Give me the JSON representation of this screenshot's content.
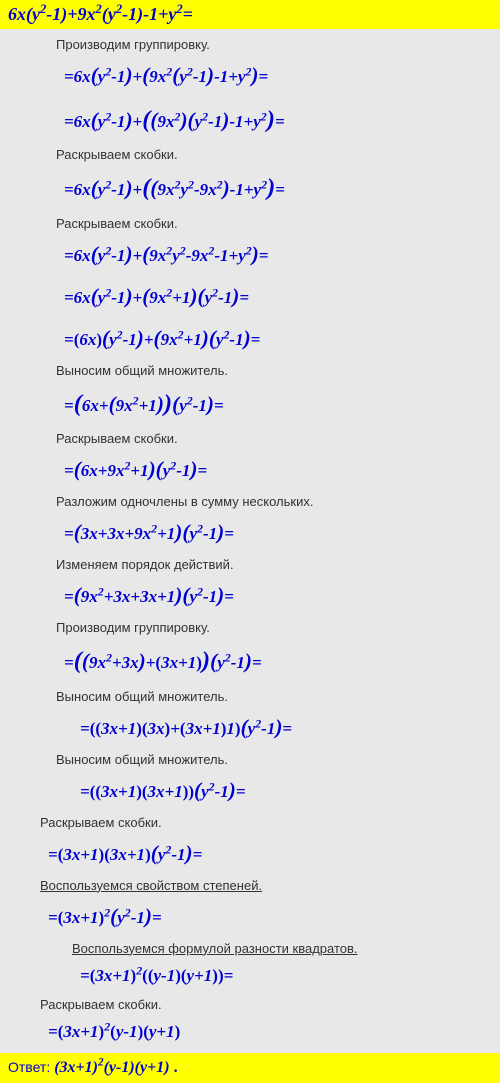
{
  "header_math": "6x(y<sup>2</sup>-1)+9x<sup>2</sup>(y<sup>2</sup>-1)-1+y<sup>2</sup>=",
  "answer_label": "Ответ:",
  "answer_math": "(3x+1)<sup>2</sup>(y-1)(y+1)",
  "answer_suffix": ".",
  "steps": [
    {
      "t": "explain",
      "lvl": "",
      "text": "Производим группировку."
    },
    {
      "t": "math",
      "lvl": "",
      "html": "=6x<span class='big'>(</span>y<sup>2</sup>-1<span class='big'>)</span>+<span class='big'>(</span>9x<sup>2</sup><span class='big'>(</span>y<sup>2</sup>-1<span class='big'>)</span>-1+y<sup>2</sup><span class='big'>)</span>="
    },
    {
      "t": "math",
      "lvl": "",
      "html": "=6x<span class='big'>(</span>y<sup>2</sup>-1<span class='big'>)</span>+<span class='bigger'>(</span><span class='big'>(</span>9x<sup>2</sup><span class='big'>)</span><span class='big'>(</span>y<sup>2</sup>-1<span class='big'>)</span>-1+y<sup>2</sup><span class='bigger'>)</span>="
    },
    {
      "t": "explain",
      "lvl": "",
      "text": "Раскрываем скобки."
    },
    {
      "t": "math",
      "lvl": "",
      "html": "=6x<span class='big'>(</span>y<sup>2</sup>-1<span class='big'>)</span>+<span class='bigger'>(</span><span class='big'>(</span>9x<sup>2</sup>y<sup>2</sup>-9x<sup>2</sup><span class='big'>)</span>-1+y<sup>2</sup><span class='bigger'>)</span>="
    },
    {
      "t": "explain",
      "lvl": "",
      "text": "Раскрываем скобки."
    },
    {
      "t": "math",
      "lvl": "",
      "html": "=6x<span class='big'>(</span>y<sup>2</sup>-1<span class='big'>)</span>+<span class='big'>(</span>9x<sup>2</sup>y<sup>2</sup>-9x<sup>2</sup>-1+y<sup>2</sup><span class='big'>)</span>="
    },
    {
      "t": "math",
      "lvl": "",
      "html": "=6x<span class='big'>(</span>y<sup>2</sup>-1<span class='big'>)</span>+<span class='big'>(</span>9x<sup>2</sup>+1<span class='big'>)</span><span class='big'>(</span>y<sup>2</sup>-1<span class='big'>)</span>="
    },
    {
      "t": "math",
      "lvl": "",
      "html": "=<span class='n'>(</span>6x<span class='n'>)</span><span class='big'>(</span>y<sup>2</sup>-1<span class='big'>)</span>+<span class='big'>(</span>9x<sup>2</sup>+1<span class='big'>)</span><span class='big'>(</span>y<sup>2</sup>-1<span class='big'>)</span>="
    },
    {
      "t": "explain",
      "lvl": "",
      "text": "Выносим общий множитель."
    },
    {
      "t": "math",
      "lvl": "",
      "html": "=<span class='bigger'>(</span>6x+<span class='big'>(</span>9x<sup>2</sup>+1<span class='big'>)</span><span class='bigger'>)</span><span class='big'>(</span>y<sup>2</sup>-1<span class='big'>)</span>="
    },
    {
      "t": "explain",
      "lvl": "",
      "text": "Раскрываем скобки."
    },
    {
      "t": "math",
      "lvl": "",
      "html": "=<span class='big'>(</span>6x+9x<sup>2</sup>+1<span class='big'>)</span><span class='big'>(</span>y<sup>2</sup>-1<span class='big'>)</span>="
    },
    {
      "t": "explain",
      "lvl": "",
      "text": "Разложим одночлены в сумму нескольких."
    },
    {
      "t": "math",
      "lvl": "",
      "html": "=<span class='big'>(</span>3x+3x+9x<sup>2</sup>+1<span class='big'>)</span><span class='big'>(</span>y<sup>2</sup>-1<span class='big'>)</span>="
    },
    {
      "t": "explain",
      "lvl": "",
      "text": "Изменяем порядок действий."
    },
    {
      "t": "math",
      "lvl": "",
      "html": "=<span class='big'>(</span>9x<sup>2</sup>+3x+3x+1<span class='big'>)</span><span class='big'>(</span>y<sup>2</sup>-1<span class='big'>)</span>="
    },
    {
      "t": "explain",
      "lvl": "",
      "text": "Производим группировку."
    },
    {
      "t": "math",
      "lvl": "",
      "html": "=<span class='bigger'>(</span><span class='big'>(</span>9x<sup>2</sup>+3x<span class='big'>)</span>+<span class='n'>(</span>3x+1<span class='n'>)</span><span class='bigger'>)</span><span class='big'>(</span>y<sup>2</sup>-1<span class='big'>)</span>="
    },
    {
      "t": "explain",
      "lvl": "",
      "text": "Выносим общий множитель."
    },
    {
      "t": "math",
      "lvl": "l2",
      "html": "=<span class='n'>((</span>3x+1<span class='n'>)(</span>3x<span class='n'>)</span>+<span class='n'>(</span>3x+1<span class='n'>)</span>1<span class='n'>)</span><span class='big'>(</span>y<sup>2</sup>-1<span class='big'>)</span>="
    },
    {
      "t": "explain",
      "lvl": "",
      "text": "Выносим общий множитель."
    },
    {
      "t": "math",
      "lvl": "l2",
      "html": "=<span class='n'>((</span>3x+1<span class='n'>)(</span>3x+1<span class='n'>))</span><span class='big'>(</span>y<sup>2</sup>-1<span class='big'>)</span>="
    },
    {
      "t": "explain",
      "lvl": "l0",
      "text": "Раскрываем скобки."
    },
    {
      "t": "math",
      "lvl": "l0",
      "html": "=<span class='n'>(</span>3x+1<span class='n'>)(</span>3x+1<span class='n'>)</span><span class='big'>(</span>y<sup>2</sup>-1<span class='big'>)</span>="
    },
    {
      "t": "explain",
      "lvl": "l0",
      "text": "Воспользуемся свойством степеней.",
      "und": true
    },
    {
      "t": "math",
      "lvl": "l0",
      "html": "=<span class='n'>(</span>3x+1<span class='n'>)</span><sup>2</sup><span class='big'>(</span>y<sup>2</sup>-1<span class='big'>)</span>="
    },
    {
      "t": "explain",
      "lvl": "l2",
      "text": "Воспользуемся формулой разности квадратов.",
      "und": true
    },
    {
      "t": "math",
      "lvl": "l2",
      "html": "=<span class='n'>(</span>3x+1<span class='n'>)</span><sup>2</sup><span class='n'>((</span>y-1<span class='n'>)(</span>y+1<span class='n'>))</span>="
    },
    {
      "t": "explain",
      "lvl": "l0",
      "text": "Раскрываем скобки."
    },
    {
      "t": "math",
      "lvl": "l0",
      "html": "=<span class='n'>(</span>3x+1<span class='n'>)</span><sup>2</sup><span class='n'>(</span>y-1<span class='n'>)(</span>y+1<span class='n'>)</span>"
    }
  ]
}
